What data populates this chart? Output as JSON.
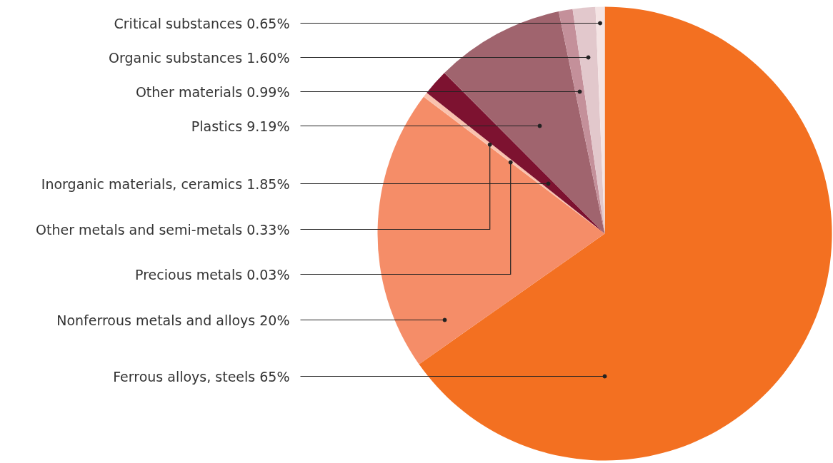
{
  "chart_data": {
    "type": "pie",
    "categories": [
      "Ferrous alloys, steels 65%",
      "Nonferrous metals and alloys 20%",
      "Precious metals 0.03%",
      "Other metals and semi-metals 0.33%",
      "Inorganic materials, ceramics 1.85%",
      "Plastics 9.19%",
      "Other materials 0.99%",
      "Organic substances 1.60%",
      "Critical substances 0.65%"
    ],
    "values": [
      65,
      20,
      0.03,
      0.33,
      1.85,
      9.19,
      0.99,
      1.6,
      0.65
    ],
    "colors": [
      "#f37021",
      "#f58d68",
      "#f7a98c",
      "#f9c2ae",
      "#7d1230",
      "#a0646e",
      "#c4909a",
      "#e2c8cc",
      "#f4e4e4"
    ]
  }
}
